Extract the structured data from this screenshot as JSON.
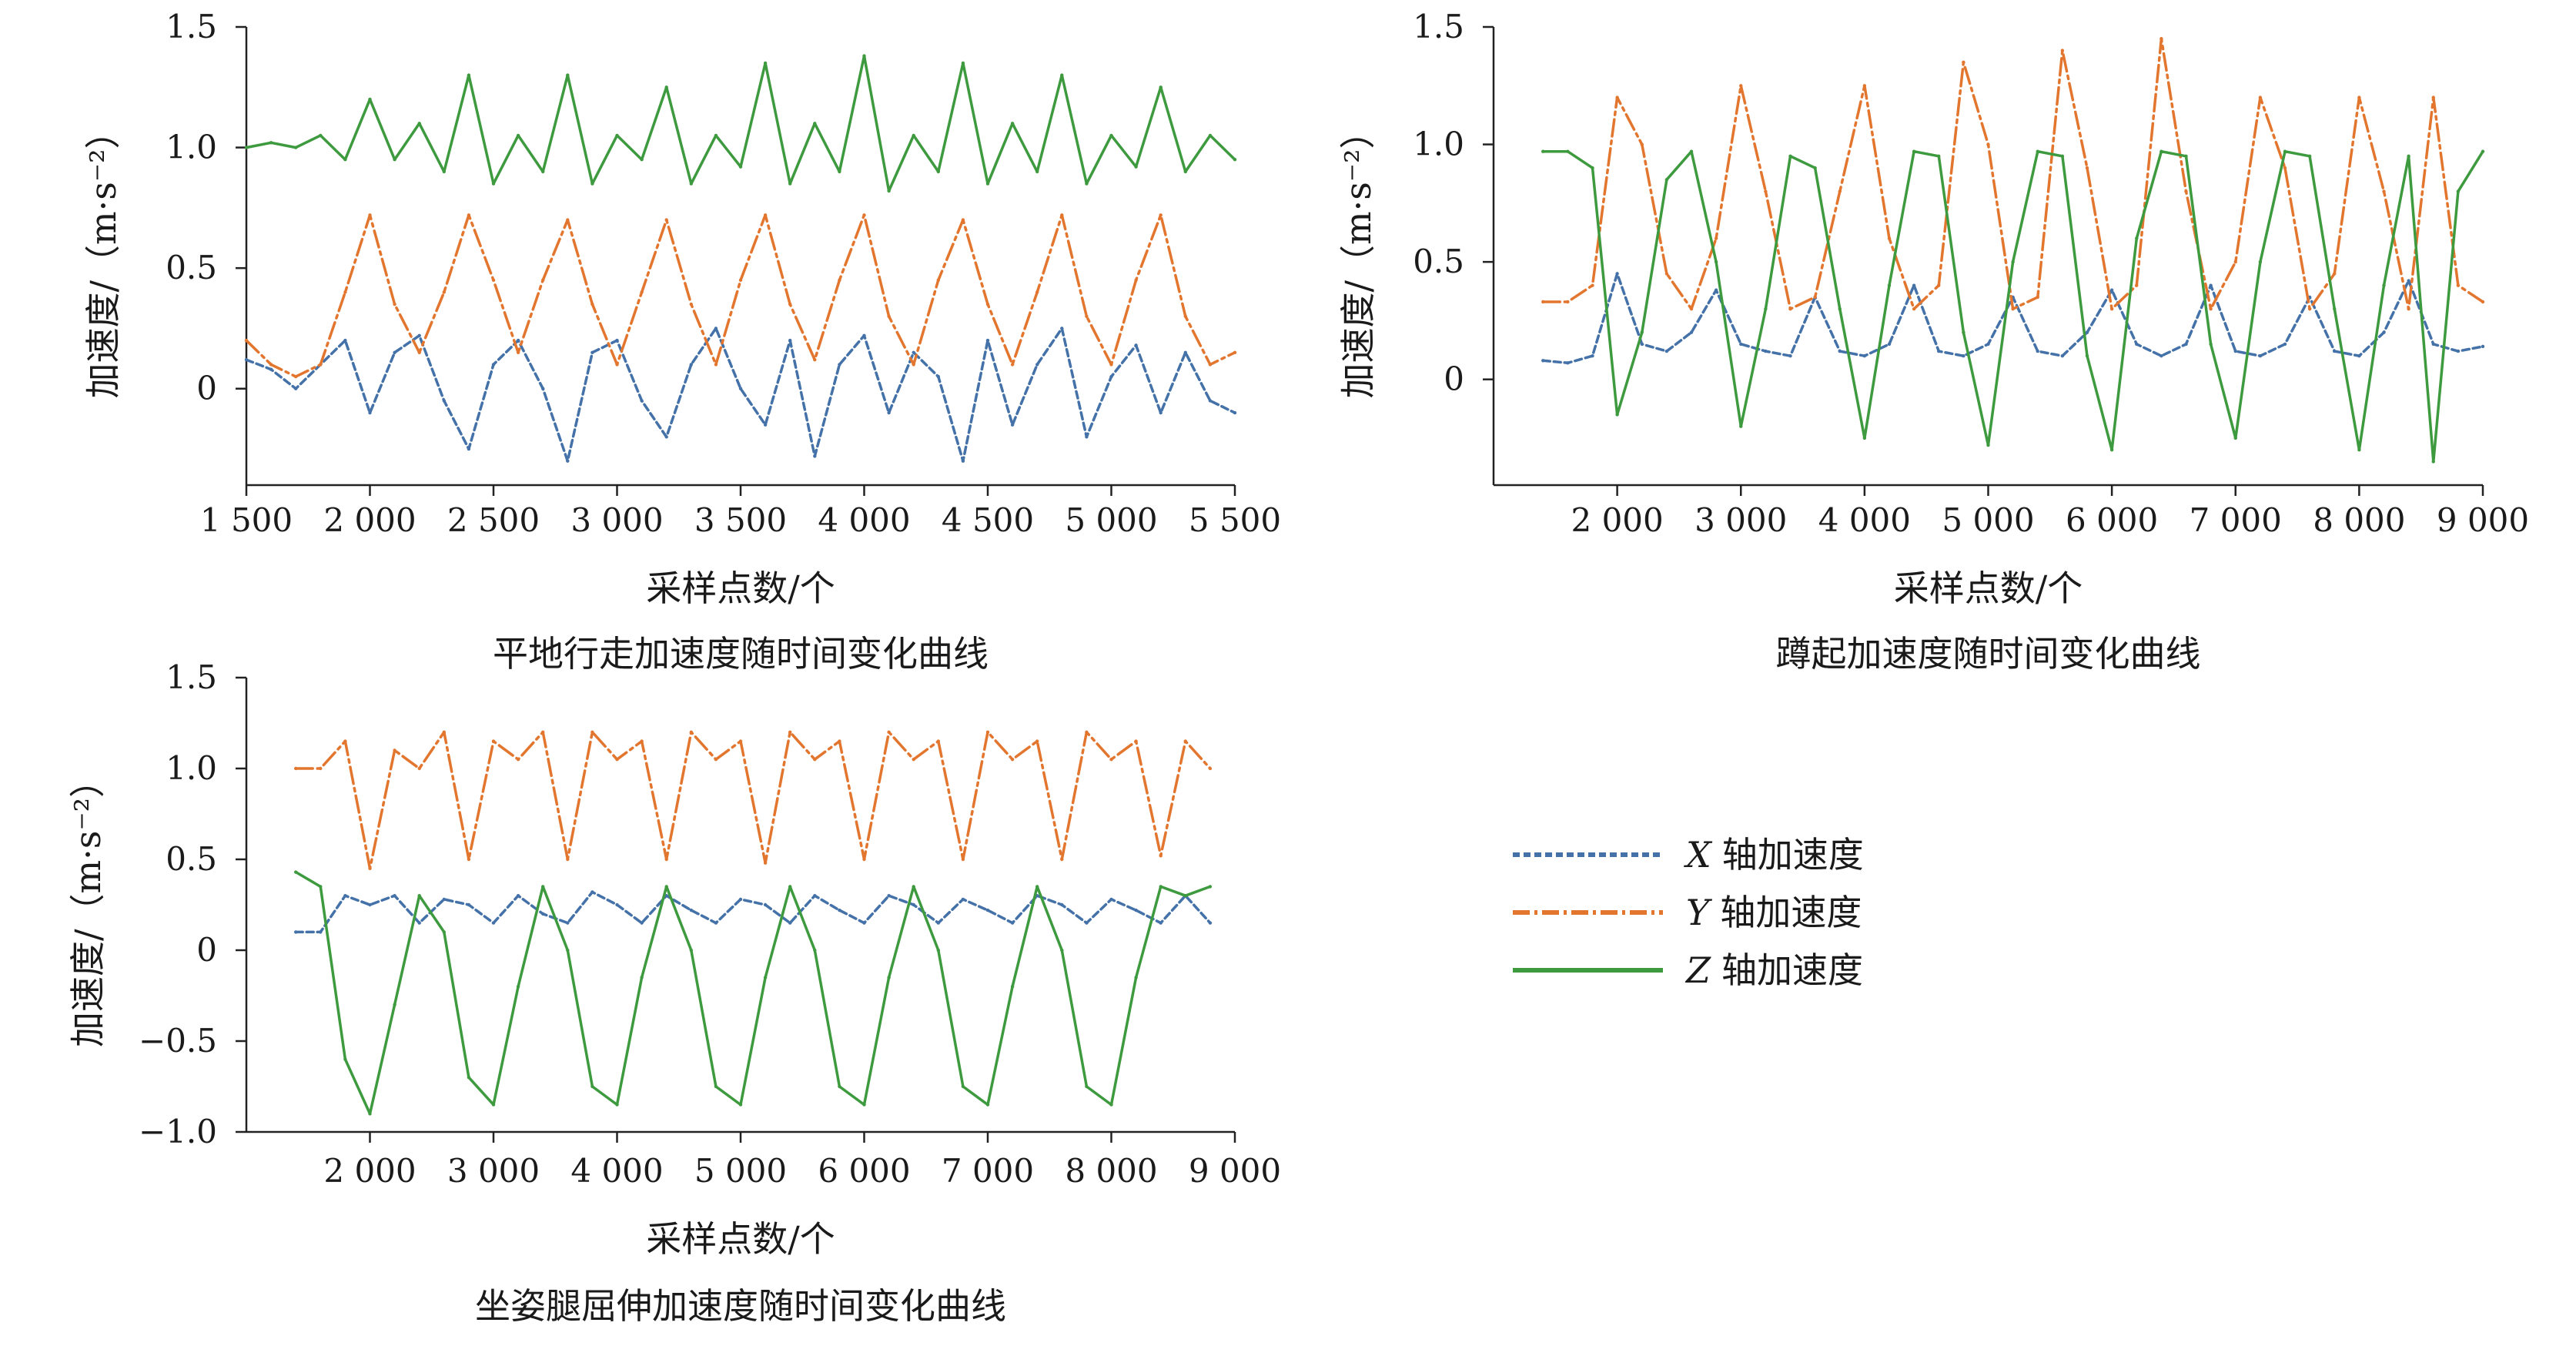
{
  "legend": {
    "items": [
      {
        "symbol": "X",
        "text": "轴加速度",
        "color": "#4472A8",
        "dash": "9,5"
      },
      {
        "symbol": "Y",
        "text": "轴加速度",
        "color": "#E3762F",
        "dash": "22,6,4,6"
      },
      {
        "symbol": "Z",
        "text": "轴加速度",
        "color": "#3E9A3E",
        "dash": ""
      }
    ]
  },
  "chart_data": [
    {
      "type": "line",
      "caption": "平地行走加速度随时间变化曲线",
      "xlabel": "采样点数/个",
      "ylabel": "加速度/（m·s⁻²）",
      "xlim": [
        1500,
        5500
      ],
      "ylim": [
        -0.4,
        1.5
      ],
      "xticks": [
        1500,
        2000,
        2500,
        3000,
        3500,
        4000,
        4500,
        5000,
        5500
      ],
      "xtick_labels": [
        "1 500",
        "2 000",
        "2 500",
        "3 000",
        "3 500",
        "4 000",
        "4 500",
        "5 000",
        "5 500"
      ],
      "yticks": [
        0,
        0.5,
        1.0,
        1.5
      ],
      "ytick_labels": [
        "0",
        "0.5",
        "1.0",
        "1.5"
      ],
      "series": [
        {
          "name": "X 轴加速度",
          "color": "#4472A8",
          "x": [
            1500,
            1600,
            1700,
            1800,
            1900,
            2000,
            2100,
            2200,
            2300,
            2400,
            2500,
            2600,
            2700,
            2800,
            2900,
            3000,
            3100,
            3200,
            3300,
            3400,
            3500,
            3600,
            3700,
            3800,
            3900,
            4000,
            4100,
            4200,
            4300,
            4400,
            4500,
            4600,
            4700,
            4800,
            4900,
            5000,
            5100,
            5200,
            5300,
            5400,
            5500
          ],
          "y": [
            0.12,
            0.08,
            0.0,
            0.1,
            0.2,
            -0.1,
            0.15,
            0.22,
            -0.05,
            -0.25,
            0.1,
            0.2,
            0.0,
            -0.3,
            0.15,
            0.2,
            -0.05,
            -0.2,
            0.1,
            0.25,
            0.0,
            -0.15,
            0.2,
            -0.28,
            0.1,
            0.22,
            -0.1,
            0.15,
            0.05,
            -0.3,
            0.2,
            -0.15,
            0.1,
            0.25,
            -0.2,
            0.05,
            0.18,
            -0.1,
            0.15,
            -0.05,
            -0.1
          ]
        },
        {
          "name": "Y 轴加速度",
          "color": "#E3762F",
          "x": [
            1500,
            1600,
            1700,
            1800,
            1900,
            2000,
            2100,
            2200,
            2300,
            2400,
            2500,
            2600,
            2700,
            2800,
            2900,
            3000,
            3100,
            3200,
            3300,
            3400,
            3500,
            3600,
            3700,
            3800,
            3900,
            4000,
            4100,
            4200,
            4300,
            4400,
            4500,
            4600,
            4700,
            4800,
            4900,
            5000,
            5100,
            5200,
            5300,
            5400,
            5500
          ],
          "y": [
            0.2,
            0.1,
            0.05,
            0.1,
            0.4,
            0.72,
            0.35,
            0.15,
            0.4,
            0.72,
            0.45,
            0.15,
            0.45,
            0.7,
            0.35,
            0.1,
            0.4,
            0.7,
            0.35,
            0.1,
            0.45,
            0.72,
            0.35,
            0.12,
            0.45,
            0.72,
            0.3,
            0.1,
            0.45,
            0.7,
            0.35,
            0.1,
            0.4,
            0.72,
            0.3,
            0.1,
            0.45,
            0.72,
            0.3,
            0.1,
            0.15
          ]
        },
        {
          "name": "Z 轴加速度",
          "color": "#3E9A3E",
          "x": [
            1500,
            1600,
            1700,
            1800,
            1900,
            2000,
            2100,
            2200,
            2300,
            2400,
            2500,
            2600,
            2700,
            2800,
            2900,
            3000,
            3100,
            3200,
            3300,
            3400,
            3500,
            3600,
            3700,
            3800,
            3900,
            4000,
            4100,
            4200,
            4300,
            4400,
            4500,
            4600,
            4700,
            4800,
            4900,
            5000,
            5100,
            5200,
            5300,
            5400,
            5500
          ],
          "y": [
            1.0,
            1.02,
            1.0,
            1.05,
            0.95,
            1.2,
            0.95,
            1.1,
            0.9,
            1.3,
            0.85,
            1.05,
            0.9,
            1.3,
            0.85,
            1.05,
            0.95,
            1.25,
            0.85,
            1.05,
            0.92,
            1.35,
            0.85,
            1.1,
            0.9,
            1.38,
            0.82,
            1.05,
            0.9,
            1.35,
            0.85,
            1.1,
            0.9,
            1.3,
            0.85,
            1.05,
            0.92,
            1.25,
            0.9,
            1.05,
            0.95
          ]
        }
      ]
    },
    {
      "type": "line",
      "caption": "蹲起加速度随时间变化曲线",
      "xlabel": "采样点数/个",
      "ylabel": "加速度/（m·s⁻²）",
      "xlim": [
        1000,
        9000
      ],
      "ylim": [
        -0.45,
        1.5
      ],
      "xticks": [
        2000,
        3000,
        4000,
        5000,
        6000,
        7000,
        8000,
        9000
      ],
      "xtick_labels": [
        "2 000",
        "3 000",
        "4 000",
        "5 000",
        "6 000",
        "7 000",
        "8 000",
        "9 000"
      ],
      "yticks": [
        0,
        0.5,
        1.0,
        1.5
      ],
      "ytick_labels": [
        "0",
        "0.5",
        "1.0",
        "1.5"
      ],
      "series": [
        {
          "name": "X 轴加速度",
          "color": "#4472A8",
          "x": [
            1400,
            1600,
            1800,
            2000,
            2200,
            2400,
            2600,
            2800,
            3000,
            3200,
            3400,
            3600,
            3800,
            4000,
            4200,
            4400,
            4600,
            4800,
            5000,
            5200,
            5400,
            5600,
            5800,
            6000,
            6200,
            6400,
            6600,
            6800,
            7000,
            7200,
            7400,
            7600,
            7800,
            8000,
            8200,
            8400,
            8600,
            8800,
            9000
          ],
          "y": [
            0.08,
            0.07,
            0.1,
            0.45,
            0.15,
            0.12,
            0.2,
            0.38,
            0.15,
            0.12,
            0.1,
            0.35,
            0.12,
            0.1,
            0.15,
            0.4,
            0.12,
            0.1,
            0.15,
            0.35,
            0.12,
            0.1,
            0.2,
            0.38,
            0.15,
            0.1,
            0.15,
            0.4,
            0.12,
            0.1,
            0.15,
            0.35,
            0.12,
            0.1,
            0.2,
            0.42,
            0.15,
            0.12,
            0.14
          ]
        },
        {
          "name": "Y 轴加速度",
          "color": "#E3762F",
          "x": [
            1400,
            1600,
            1800,
            2000,
            2200,
            2400,
            2600,
            2800,
            3000,
            3200,
            3400,
            3600,
            3800,
            4000,
            4200,
            4400,
            4600,
            4800,
            5000,
            5200,
            5400,
            5600,
            5800,
            6000,
            6200,
            6400,
            6600,
            6800,
            7000,
            7200,
            7400,
            7600,
            7800,
            8000,
            8200,
            8400,
            8600,
            8800,
            9000
          ],
          "y": [
            0.33,
            0.33,
            0.4,
            1.2,
            1.0,
            0.45,
            0.3,
            0.6,
            1.25,
            0.8,
            0.3,
            0.35,
            0.8,
            1.25,
            0.6,
            0.3,
            0.4,
            1.35,
            1.0,
            0.3,
            0.35,
            1.4,
            0.9,
            0.3,
            0.4,
            1.45,
            0.8,
            0.3,
            0.5,
            1.2,
            0.9,
            0.3,
            0.45,
            1.2,
            0.8,
            0.3,
            1.2,
            0.4,
            0.33
          ]
        },
        {
          "name": "Z 轴加速度",
          "color": "#3E9A3E",
          "x": [
            1400,
            1600,
            1800,
            2000,
            2200,
            2400,
            2600,
            2800,
            3000,
            3200,
            3400,
            3600,
            3800,
            4000,
            4200,
            4400,
            4600,
            4800,
            5000,
            5200,
            5400,
            5600,
            5800,
            6000,
            6200,
            6400,
            6600,
            6800,
            7000,
            7200,
            7400,
            7600,
            7800,
            8000,
            8200,
            8400,
            8600,
            8800,
            9000
          ],
          "y": [
            0.97,
            0.97,
            0.9,
            -0.15,
            0.2,
            0.85,
            0.97,
            0.5,
            -0.2,
            0.3,
            0.95,
            0.9,
            0.3,
            -0.25,
            0.4,
            0.97,
            0.95,
            0.2,
            -0.28,
            0.5,
            0.97,
            0.95,
            0.1,
            -0.3,
            0.6,
            0.97,
            0.95,
            0.15,
            -0.25,
            0.5,
            0.97,
            0.95,
            0.3,
            -0.3,
            0.4,
            0.95,
            -0.35,
            0.8,
            0.97
          ]
        }
      ]
    },
    {
      "type": "line",
      "caption": "坐姿腿屈伸加速度随时间变化曲线",
      "xlabel": "采样点数/个",
      "ylabel": "加速度/（m·s⁻²）",
      "xlim": [
        1000,
        9000
      ],
      "ylim": [
        -1.0,
        1.5
      ],
      "xticks": [
        2000,
        3000,
        4000,
        5000,
        6000,
        7000,
        8000,
        9000
      ],
      "xtick_labels": [
        "2 000",
        "3 000",
        "4 000",
        "5 000",
        "6 000",
        "7 000",
        "8 000",
        "9 000"
      ],
      "yticks": [
        -1.0,
        -0.5,
        0,
        0.5,
        1.0,
        1.5
      ],
      "ytick_labels": [
        "−1.0",
        "−0.5",
        "0",
        "0.5",
        "1.0",
        "1.5"
      ],
      "series": [
        {
          "name": "X 轴加速度",
          "color": "#4472A8",
          "x": [
            1400,
            1600,
            1800,
            2000,
            2200,
            2400,
            2600,
            2800,
            3000,
            3200,
            3400,
            3600,
            3800,
            4000,
            4200,
            4400,
            4600,
            4800,
            5000,
            5200,
            5400,
            5600,
            5800,
            6000,
            6200,
            6400,
            6600,
            6800,
            7000,
            7200,
            7400,
            7600,
            7800,
            8000,
            8200,
            8400,
            8600,
            8800
          ],
          "y": [
            0.1,
            0.1,
            0.3,
            0.25,
            0.3,
            0.15,
            0.28,
            0.25,
            0.15,
            0.3,
            0.2,
            0.15,
            0.32,
            0.25,
            0.15,
            0.3,
            0.22,
            0.15,
            0.28,
            0.25,
            0.15,
            0.3,
            0.22,
            0.15,
            0.3,
            0.25,
            0.15,
            0.28,
            0.22,
            0.15,
            0.3,
            0.25,
            0.15,
            0.28,
            0.22,
            0.15,
            0.3,
            0.15
          ]
        },
        {
          "name": "Y 轴加速度",
          "color": "#E3762F",
          "x": [
            1400,
            1600,
            1800,
            2000,
            2200,
            2400,
            2600,
            2800,
            3000,
            3200,
            3400,
            3600,
            3800,
            4000,
            4200,
            4400,
            4600,
            4800,
            5000,
            5200,
            5400,
            5600,
            5800,
            6000,
            6200,
            6400,
            6600,
            6800,
            7000,
            7200,
            7400,
            7600,
            7800,
            8000,
            8200,
            8400,
            8600,
            8800
          ],
          "y": [
            1.0,
            1.0,
            1.15,
            0.45,
            1.1,
            1.0,
            1.2,
            0.5,
            1.15,
            1.05,
            1.2,
            0.5,
            1.2,
            1.05,
            1.15,
            0.5,
            1.2,
            1.05,
            1.15,
            0.48,
            1.2,
            1.05,
            1.15,
            0.5,
            1.2,
            1.05,
            1.15,
            0.5,
            1.2,
            1.05,
            1.15,
            0.5,
            1.2,
            1.05,
            1.15,
            0.52,
            1.15,
            1.0
          ]
        },
        {
          "name": "Z 轴加速度",
          "color": "#3E9A3E",
          "x": [
            1400,
            1600,
            1800,
            2000,
            2200,
            2400,
            2600,
            2800,
            3000,
            3200,
            3400,
            3600,
            3800,
            4000,
            4200,
            4400,
            4600,
            4800,
            5000,
            5200,
            5400,
            5600,
            5800,
            6000,
            6200,
            6400,
            6600,
            6800,
            7000,
            7200,
            7400,
            7600,
            7800,
            8000,
            8200,
            8400,
            8600,
            8800
          ],
          "y": [
            0.43,
            0.35,
            -0.6,
            -0.9,
            -0.3,
            0.3,
            0.1,
            -0.7,
            -0.85,
            -0.2,
            0.35,
            0.0,
            -0.75,
            -0.85,
            -0.15,
            0.35,
            0.0,
            -0.75,
            -0.85,
            -0.15,
            0.35,
            0.0,
            -0.75,
            -0.85,
            -0.15,
            0.35,
            0.0,
            -0.75,
            -0.85,
            -0.2,
            0.35,
            0.0,
            -0.75,
            -0.85,
            -0.15,
            0.35,
            0.3,
            0.35
          ]
        }
      ]
    }
  ]
}
